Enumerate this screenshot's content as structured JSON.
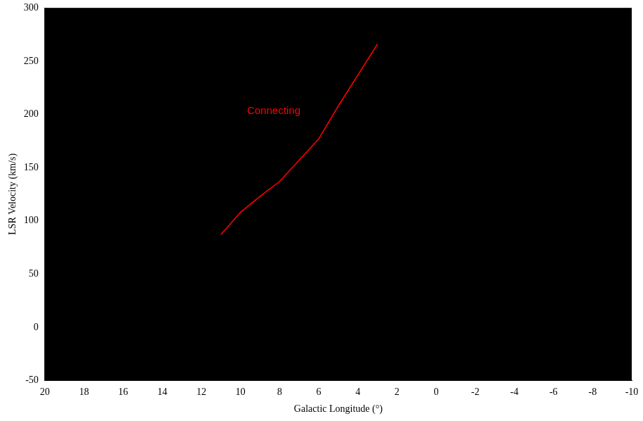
{
  "chart_data": {
    "type": "line",
    "x_label": "Galactic Longitude (°)",
    "y_label": "LSR Velocity (km/s)",
    "x": [
      11,
      10,
      9,
      8,
      7,
      6,
      5,
      4,
      3
    ],
    "series": [
      {
        "color": "#ff0000",
        "values": [
          87,
          108,
          123,
          137,
          157,
          177,
          208,
          237,
          266
        ],
        "line_style": "solid",
        "marker": "none"
      }
    ],
    "xlim": [
      20,
      -10
    ],
    "xticks": [
      20,
      18,
      16,
      14,
      12,
      10,
      8,
      6,
      4,
      2,
      0,
      -2,
      -4,
      -6,
      -8,
      -10
    ],
    "ylim": [
      -50,
      300
    ],
    "yticks": [
      -50,
      0,
      50,
      100,
      150,
      200,
      250,
      300
    ],
    "grid": false,
    "annotations": [
      {
        "text": "Connecting",
        "x": 8.3,
        "y": 203,
        "color": "#ff0000"
      }
    ]
  }
}
